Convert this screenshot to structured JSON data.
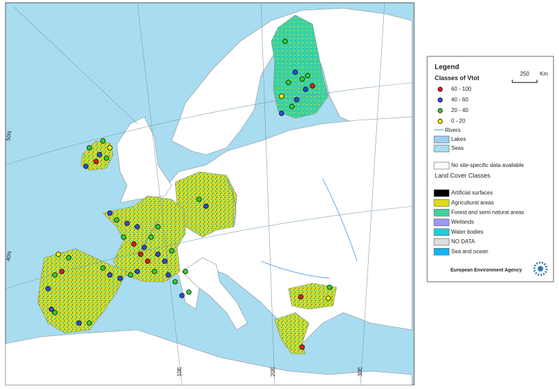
{
  "map": {
    "graticule_labels": [
      "50N",
      "40N",
      "10E",
      "20E",
      "30E"
    ],
    "legend": {
      "title": "Legend",
      "subtitle": "Classes of Vtot",
      "scale_value": "250",
      "scale_unit": "Km",
      "classes": [
        {
          "label": "60 - 100",
          "color": "#e41a1c"
        },
        {
          "label": "40 - 60",
          "color": "#2b4fd8"
        },
        {
          "label": "20 - 40",
          "color": "#2fd22f"
        },
        {
          "label": "0 - 20",
          "color": "#f5f500"
        }
      ],
      "rivers": "Rivers",
      "lakes": {
        "label": "Lakes",
        "color": "#9fcff0"
      },
      "seas": {
        "label": "Seas",
        "color": "#a8dcf0"
      },
      "no_data_sites": {
        "label": "No site-specific data available",
        "color": "#ffffff"
      },
      "land_cover_title": "Land Cover Classes",
      "land_cover": [
        {
          "label": "Artificial surfaces",
          "color": "#000000"
        },
        {
          "label": "Agricultural areas",
          "color": "#dcdc1e"
        },
        {
          "label": "Forest and semi natural areas",
          "color": "#3cd2a0"
        },
        {
          "label": "Wetlands",
          "color": "#9a9af0"
        },
        {
          "label": "Water bodies",
          "color": "#28c8dc"
        },
        {
          "label": "NO DATA",
          "color": "#dcdcdc"
        },
        {
          "label": "Sea and ocean",
          "color": "#14b4f0"
        }
      ],
      "agency": "European Environment Agency"
    }
  }
}
